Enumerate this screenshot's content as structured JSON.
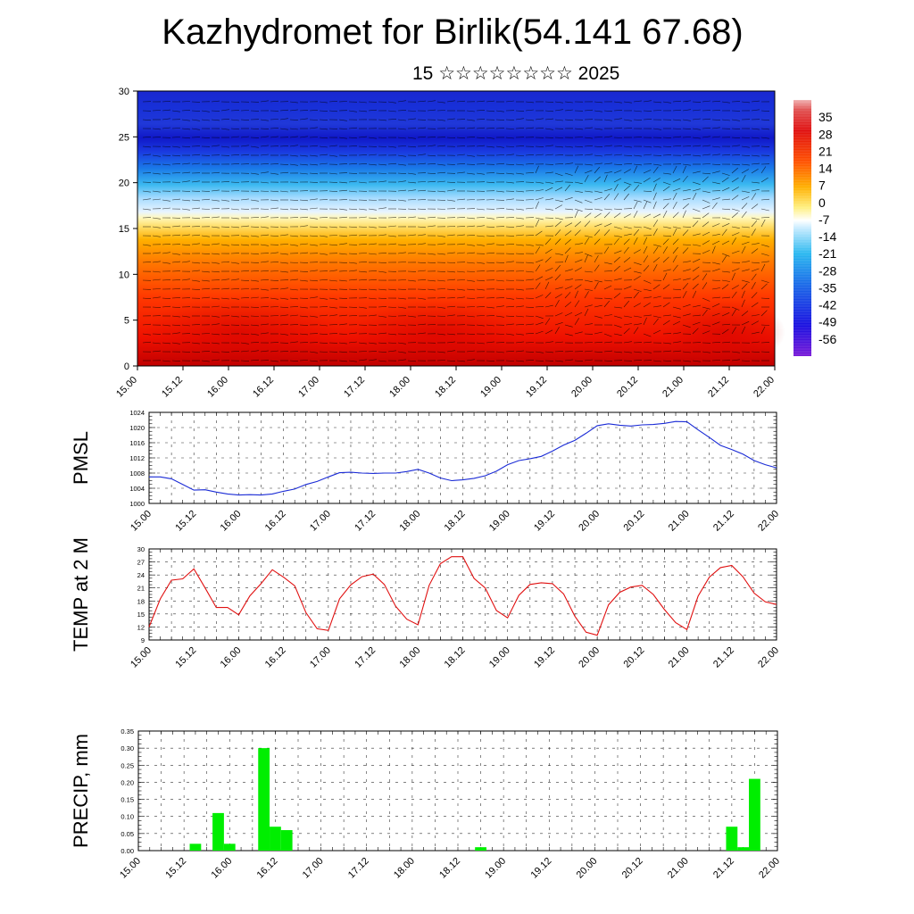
{
  "title": "Kazhydromet for Birlik(54.141 67.68)",
  "subtitle": "15 ☆☆☆☆☆☆☆☆ 2025",
  "colors": {
    "pmsl_line": "#1a2bd6",
    "temp_line": "#e01010",
    "precip_bar": "#00ee00"
  },
  "x_tick_labels": [
    "15.00",
    "15.12",
    "16.00",
    "16.12",
    "17.00",
    "17.12",
    "18.00",
    "18.12",
    "19.00",
    "19.12",
    "20.00",
    "20.12",
    "21.00",
    "21.12",
    "22.00"
  ],
  "chart_data": [
    {
      "type": "heatmap",
      "ylim": [
        0,
        30
      ],
      "y_ticks": [
        "0",
        "5",
        "10",
        "15",
        "20",
        "25",
        "30"
      ],
      "colorbar_labels": [
        "35",
        "28",
        "21",
        "14",
        "7",
        "0",
        "-7",
        "-14",
        "-21",
        "-28",
        "-35",
        "-42",
        "-49",
        "-56"
      ],
      "colorbar_range": [
        -63,
        42
      ],
      "note_overlay": "wind-barbs"
    },
    {
      "type": "line",
      "ylabel": "PMSL",
      "ylim": [
        1000,
        1024
      ],
      "y_ticks": [
        "1000",
        "1004",
        "1008",
        "1012",
        "1016",
        "1020",
        "1024"
      ],
      "x": [
        0,
        3,
        6,
        9,
        12,
        15,
        18,
        21,
        24,
        27,
        30,
        33,
        36,
        39,
        42,
        45,
        48,
        51,
        54,
        57,
        60,
        63,
        66,
        69,
        72,
        75,
        78,
        81,
        84,
        87,
        90,
        93,
        96,
        99,
        102,
        105,
        108,
        111,
        114,
        117,
        120,
        123,
        126,
        129,
        132,
        135,
        138,
        141,
        144,
        147,
        150,
        153,
        156,
        159,
        162,
        165,
        168
      ],
      "values": [
        1007,
        1007,
        1006.5,
        1005,
        1003.5,
        1003.6,
        1003,
        1002.5,
        1002.2,
        1002.3,
        1002.2,
        1002.5,
        1003.2,
        1003.8,
        1005,
        1005.8,
        1007,
        1008.1,
        1008.2,
        1008,
        1007.9,
        1008,
        1008,
        1008.4,
        1009,
        1008,
        1006.7,
        1006,
        1006.2,
        1006.6,
        1007.3,
        1008.5,
        1010.2,
        1011.3,
        1011.8,
        1012.4,
        1013.8,
        1015.4,
        1016.6,
        1018.5,
        1020.5,
        1021,
        1020.6,
        1020.4,
        1020.7,
        1020.8,
        1021.1,
        1021.6,
        1021.5,
        1019.4,
        1017.4,
        1015.3,
        1014.2,
        1013,
        1011.3,
        1010.2,
        1009.4
      ]
    },
    {
      "type": "line",
      "ylabel": "TEMP at 2 M",
      "ylim": [
        9,
        30
      ],
      "y_ticks": [
        "9",
        "12",
        "15",
        "18",
        "21",
        "24",
        "27",
        "30"
      ],
      "x": [
        0,
        3,
        6,
        9,
        12,
        15,
        18,
        21,
        24,
        27,
        30,
        33,
        36,
        39,
        42,
        45,
        48,
        51,
        54,
        57,
        60,
        63,
        66,
        69,
        72,
        75,
        78,
        81,
        84,
        87,
        90,
        93,
        96,
        99,
        102,
        105,
        108,
        111,
        114,
        117,
        120,
        123,
        126,
        129,
        132,
        135,
        138,
        141,
        144,
        147,
        150,
        153,
        156,
        159,
        162,
        165,
        168
      ],
      "values": [
        12,
        18.5,
        22.8,
        23.1,
        25.4,
        21,
        16.5,
        16.5,
        14.8,
        19.2,
        22,
        25.2,
        23.5,
        21.5,
        15.3,
        11.6,
        11.2,
        18.5,
        21.7,
        23.6,
        24.2,
        21.8,
        16.8,
        13.8,
        12.5,
        21.6,
        26.6,
        28.2,
        28.2,
        23.2,
        21,
        15.8,
        14.1,
        19.3,
        21.8,
        22.2,
        22,
        19.6,
        14.5,
        10.8,
        10.1,
        17.1,
        20,
        21.2,
        21.6,
        19.5,
        16,
        13,
        11.4,
        19.1,
        23.5,
        25.7,
        26.2,
        23.6,
        19.8,
        17.8,
        17.2
      ]
    },
    {
      "type": "bar",
      "ylabel": "PRECIP, mm",
      "ylim": [
        0,
        0.35
      ],
      "y_ticks": [
        "0.00",
        "0.05",
        "0.10",
        "0.15",
        "0.20",
        "0.25",
        "0.30",
        "0.35"
      ],
      "x": [
        15,
        21,
        24,
        33,
        36,
        39,
        42,
        90,
        156,
        159,
        162
      ],
      "values": [
        0.02,
        0.11,
        0.02,
        0.3,
        0.07,
        0.06,
        0.0,
        0.01,
        0.07,
        0.01,
        0.21
      ]
    }
  ]
}
